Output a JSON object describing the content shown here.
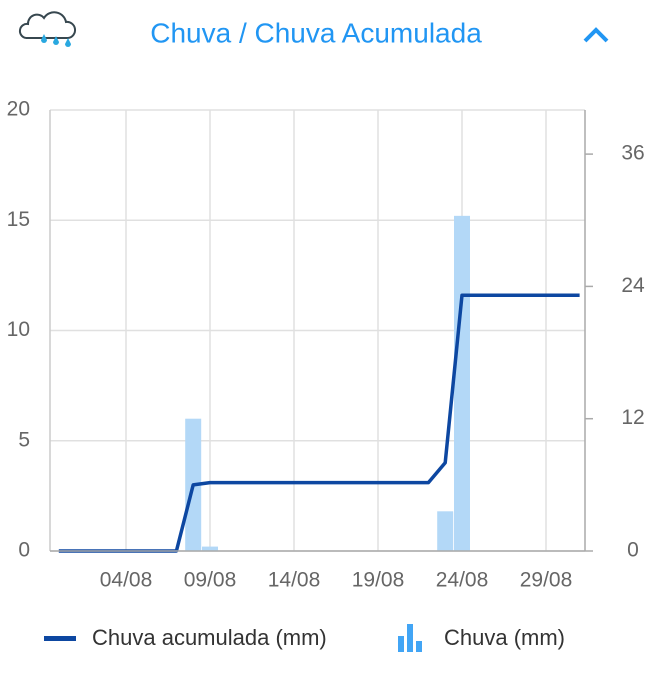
{
  "chart_data": {
    "type": "combo",
    "title": "Chuva / Chuva Acumulada",
    "categories": [
      null,
      null,
      null,
      null,
      "04/08",
      null,
      null,
      null,
      null,
      "09/08",
      null,
      null,
      null,
      null,
      "14/08",
      null,
      null,
      null,
      null,
      "19/08",
      null,
      null,
      null,
      null,
      "24/08",
      null,
      null,
      null,
      null,
      "29/08",
      null,
      null
    ],
    "series": [
      {
        "name": "Chuva acumulada (mm)",
        "type": "line",
        "axis": "y2",
        "color": "#0d47a1",
        "values": [
          0,
          0,
          0,
          0,
          0,
          0,
          0,
          0,
          6,
          6.2,
          6.2,
          6.2,
          6.2,
          6.2,
          6.2,
          6.2,
          6.2,
          6.2,
          6.2,
          6.2,
          6.2,
          6.2,
          6.2,
          8,
          23.2,
          23.2,
          23.2,
          23.2,
          23.2,
          23.2,
          23.2,
          23.2
        ]
      },
      {
        "name": "Chuva (mm)",
        "type": "bar",
        "axis": "y",
        "color": "#b3d8f7",
        "values": [
          0,
          0,
          0,
          0,
          0,
          0,
          0,
          0,
          6,
          0.2,
          0,
          0,
          0,
          0,
          0,
          0,
          0,
          0,
          0,
          0,
          0,
          0,
          0,
          1.8,
          15.2,
          0,
          0,
          0,
          0,
          0,
          0,
          0
        ]
      }
    ],
    "ylim": [
      0,
      20
    ],
    "yticks": [
      0,
      5,
      10,
      15,
      20
    ],
    "y2lim": [
      0,
      40
    ],
    "y2ticks": [
      0,
      12,
      24,
      36
    ],
    "grid": true
  }
}
